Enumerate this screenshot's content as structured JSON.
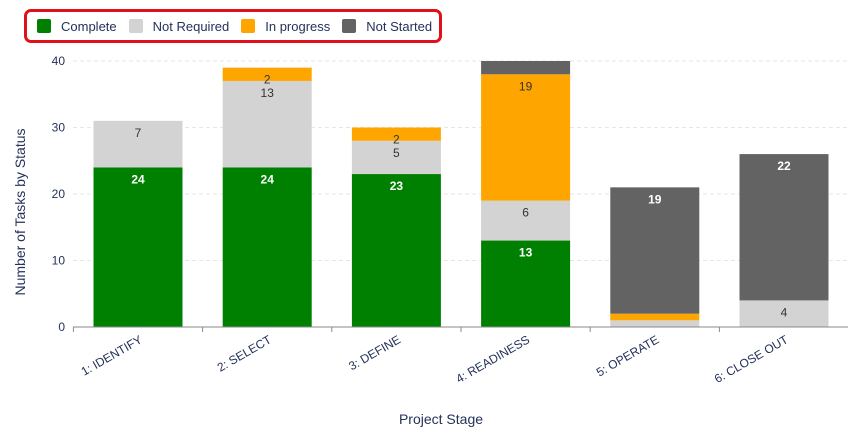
{
  "chart_data": {
    "type": "bar",
    "stacked": true,
    "xlabel": "Project Stage",
    "ylabel": "Number of Tasks by Status",
    "ylim": [
      0,
      40
    ],
    "yticks": [
      0,
      10,
      20,
      30,
      40
    ],
    "grid": true,
    "legend_position": "top-left",
    "categories": [
      "1: IDENTIFY",
      "2: SELECT",
      "3: DEFINE",
      "4: READINESS",
      "5: OPERATE",
      "6: CLOSE OUT"
    ],
    "series": [
      {
        "name": "Complete",
        "color": "#008000",
        "label_color": "#ffffff",
        "values": [
          24,
          24,
          23,
          13,
          0,
          0
        ]
      },
      {
        "name": "Not Required",
        "color": "#d3d3d3",
        "label_color": "#333333",
        "values": [
          7,
          13,
          5,
          6,
          1,
          4
        ]
      },
      {
        "name": "In progress",
        "color": "#ffa500",
        "label_color": "#333333",
        "values": [
          0,
          2,
          2,
          19,
          1,
          0
        ]
      },
      {
        "name": "Not Started",
        "color": "#636363",
        "label_color": "#ffffff",
        "values": [
          0,
          0,
          0,
          2,
          19,
          22
        ]
      }
    ],
    "data_labels": [
      {
        "category": "1: IDENTIFY",
        "series": "Complete",
        "text": "24"
      },
      {
        "category": "1: IDENTIFY",
        "series": "Not Required",
        "text": "7"
      },
      {
        "category": "2: SELECT",
        "series": "Complete",
        "text": "24"
      },
      {
        "category": "2: SELECT",
        "series": "Not Required",
        "text": "13"
      },
      {
        "category": "2: SELECT",
        "series": "In progress",
        "text": "2"
      },
      {
        "category": "3: DEFINE",
        "series": "Complete",
        "text": "23"
      },
      {
        "category": "3: DEFINE",
        "series": "Not Required",
        "text": "5"
      },
      {
        "category": "3: DEFINE",
        "series": "In progress",
        "text": "2"
      },
      {
        "category": "4: READINESS",
        "series": "Complete",
        "text": "13"
      },
      {
        "category": "4: READINESS",
        "series": "Not Required",
        "text": "6"
      },
      {
        "category": "4: READINESS",
        "series": "In progress",
        "text": "19"
      },
      {
        "category": "5: OPERATE",
        "series": "Not Started",
        "text": "19"
      },
      {
        "category": "6: CLOSE OUT",
        "series": "Not Required",
        "text": "4"
      },
      {
        "category": "6: CLOSE OUT",
        "series": "Not Started",
        "text": "22"
      }
    ]
  },
  "colors": {
    "axis_text": "#24325a",
    "gridline": "#e6e6e6",
    "legend_border": "#e0101a"
  }
}
